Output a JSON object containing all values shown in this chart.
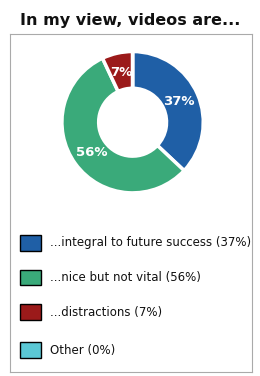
{
  "title": "In my view, videos are...",
  "slices": [
    37,
    56,
    7,
    0
  ],
  "colors": [
    "#1f5fa6",
    "#3aaa7a",
    "#9b1a1a",
    "#5bc8d5"
  ],
  "legend_labels": [
    "...integral to future success (37%)",
    "...nice but not vital (56%)",
    "...distractions (7%)",
    "Other (0%)"
  ],
  "pct_labels": [
    "37%",
    "56%",
    "7%"
  ],
  "startangle": 90,
  "title_fontsize": 11.5,
  "label_fontsize": 9.5,
  "legend_fontsize": 8.5,
  "bg_color": "#ffffff",
  "border_color": "#aaaaaa"
}
